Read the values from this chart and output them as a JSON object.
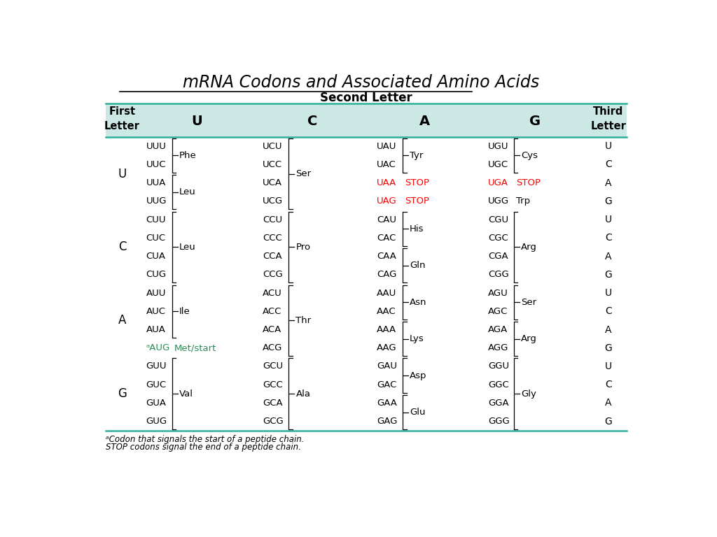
{
  "title": "mRNA Codons and Associated Amino Acids",
  "background_color": "#ffffff",
  "second_letter_label": "Second Letter",
  "col_headers": [
    "U",
    "C",
    "A",
    "G"
  ],
  "footnote1": "ᵃCodon that signals the start of a peptide chain.",
  "footnote2": "STOP codons signal the end of a peptide chain.",
  "rows": [
    {
      "first": "U",
      "cells": [
        {
          "codons": [
            "UUU",
            "UUC",
            "UUA",
            "UUG"
          ],
          "codon_colors": [
            "black",
            "black",
            "black",
            "black"
          ],
          "groups": [
            {
              "lines": [
                0,
                1
              ],
              "aa": "Phe",
              "aa_color": "black"
            },
            {
              "lines": [
                2,
                3
              ],
              "aa": "Leu",
              "aa_color": "black"
            }
          ]
        },
        {
          "codons": [
            "UCU",
            "UCC",
            "UCA",
            "UCG"
          ],
          "codon_colors": [
            "black",
            "black",
            "black",
            "black"
          ],
          "groups": [
            {
              "lines": [
                0,
                1,
                2,
                3
              ],
              "aa": "Ser",
              "aa_color": "black"
            }
          ]
        },
        {
          "codons": [
            "UAU",
            "UAC",
            "UAA",
            "UAG"
          ],
          "codon_colors": [
            "black",
            "black",
            "red",
            "red"
          ],
          "groups": [
            {
              "lines": [
                0,
                1
              ],
              "aa": "Tyr",
              "aa_color": "black"
            },
            {
              "lines": [
                2
              ],
              "aa": "STOP",
              "aa_color": "red",
              "no_bracket": true
            },
            {
              "lines": [
                3
              ],
              "aa": "STOP",
              "aa_color": "red",
              "no_bracket": true
            }
          ]
        },
        {
          "codons": [
            "UGU",
            "UGC",
            "UGA",
            "UGG"
          ],
          "codon_colors": [
            "black",
            "black",
            "red",
            "black"
          ],
          "groups": [
            {
              "lines": [
                0,
                1
              ],
              "aa": "Cys",
              "aa_color": "black"
            },
            {
              "lines": [
                2
              ],
              "aa": "STOP",
              "aa_color": "red",
              "no_bracket": true
            },
            {
              "lines": [
                3
              ],
              "aa": "Trp",
              "aa_color": "black",
              "no_bracket": true
            }
          ]
        }
      ],
      "third": [
        "U",
        "C",
        "A",
        "G"
      ]
    },
    {
      "first": "C",
      "cells": [
        {
          "codons": [
            "CUU",
            "CUC",
            "CUA",
            "CUG"
          ],
          "codon_colors": [
            "black",
            "black",
            "black",
            "black"
          ],
          "groups": [
            {
              "lines": [
                0,
                1,
                2,
                3
              ],
              "aa": "Leu",
              "aa_color": "black"
            }
          ]
        },
        {
          "codons": [
            "CCU",
            "CCC",
            "CCA",
            "CCG"
          ],
          "codon_colors": [
            "black",
            "black",
            "black",
            "black"
          ],
          "groups": [
            {
              "lines": [
                0,
                1,
                2,
                3
              ],
              "aa": "Pro",
              "aa_color": "black"
            }
          ]
        },
        {
          "codons": [
            "CAU",
            "CAC",
            "CAA",
            "CAG"
          ],
          "codon_colors": [
            "black",
            "black",
            "black",
            "black"
          ],
          "groups": [
            {
              "lines": [
                0,
                1
              ],
              "aa": "His",
              "aa_color": "black"
            },
            {
              "lines": [
                2,
                3
              ],
              "aa": "Gln",
              "aa_color": "black"
            }
          ]
        },
        {
          "codons": [
            "CGU",
            "CGC",
            "CGA",
            "CGG"
          ],
          "codon_colors": [
            "black",
            "black",
            "black",
            "black"
          ],
          "groups": [
            {
              "lines": [
                0,
                1,
                2,
                3
              ],
              "aa": "Arg",
              "aa_color": "black"
            }
          ]
        }
      ],
      "third": [
        "U",
        "C",
        "A",
        "G"
      ]
    },
    {
      "first": "A",
      "cells": [
        {
          "codons": [
            "AUU",
            "AUC",
            "AUA",
            "ᵃAUG"
          ],
          "codon_colors": [
            "black",
            "black",
            "black",
            "#2e8b57"
          ],
          "groups": [
            {
              "lines": [
                0,
                1,
                2
              ],
              "aa": "Ile",
              "aa_color": "black"
            },
            {
              "lines": [
                3
              ],
              "aa": "Met/start",
              "aa_color": "#2e8b57",
              "no_bracket": true
            }
          ]
        },
        {
          "codons": [
            "ACU",
            "ACC",
            "ACA",
            "ACG"
          ],
          "codon_colors": [
            "black",
            "black",
            "black",
            "black"
          ],
          "groups": [
            {
              "lines": [
                0,
                1,
                2,
                3
              ],
              "aa": "Thr",
              "aa_color": "black"
            }
          ]
        },
        {
          "codons": [
            "AAU",
            "AAC",
            "AAA",
            "AAG"
          ],
          "codon_colors": [
            "black",
            "black",
            "black",
            "black"
          ],
          "groups": [
            {
              "lines": [
                0,
                1
              ],
              "aa": "Asn",
              "aa_color": "black"
            },
            {
              "lines": [
                2,
                3
              ],
              "aa": "Lys",
              "aa_color": "black"
            }
          ]
        },
        {
          "codons": [
            "AGU",
            "AGC",
            "AGA",
            "AGG"
          ],
          "codon_colors": [
            "black",
            "black",
            "black",
            "black"
          ],
          "groups": [
            {
              "lines": [
                0,
                1
              ],
              "aa": "Ser",
              "aa_color": "black"
            },
            {
              "lines": [
                2,
                3
              ],
              "aa": "Arg",
              "aa_color": "black"
            }
          ]
        }
      ],
      "third": [
        "U",
        "C",
        "A",
        "G"
      ]
    },
    {
      "first": "G",
      "cells": [
        {
          "codons": [
            "GUU",
            "GUC",
            "GUA",
            "GUG"
          ],
          "codon_colors": [
            "black",
            "black",
            "black",
            "black"
          ],
          "groups": [
            {
              "lines": [
                0,
                1,
                2,
                3
              ],
              "aa": "Val",
              "aa_color": "black"
            }
          ]
        },
        {
          "codons": [
            "GCU",
            "GCC",
            "GCA",
            "GCG"
          ],
          "codon_colors": [
            "black",
            "black",
            "black",
            "black"
          ],
          "groups": [
            {
              "lines": [
                0,
                1,
                2,
                3
              ],
              "aa": "Ala",
              "aa_color": "black"
            }
          ]
        },
        {
          "codons": [
            "GAU",
            "GAC",
            "GAA",
            "GAG"
          ],
          "codon_colors": [
            "black",
            "black",
            "black",
            "black"
          ],
          "groups": [
            {
              "lines": [
                0,
                1
              ],
              "aa": "Asp",
              "aa_color": "black"
            },
            {
              "lines": [
                2,
                3
              ],
              "aa": "Glu",
              "aa_color": "black"
            }
          ]
        },
        {
          "codons": [
            "GGU",
            "GGC",
            "GGA",
            "GGG"
          ],
          "codon_colors": [
            "black",
            "black",
            "black",
            "black"
          ],
          "groups": [
            {
              "lines": [
                0,
                1,
                2,
                3
              ],
              "aa": "Gly",
              "aa_color": "black"
            }
          ]
        }
      ],
      "third": [
        "U",
        "C",
        "A",
        "G"
      ]
    }
  ]
}
